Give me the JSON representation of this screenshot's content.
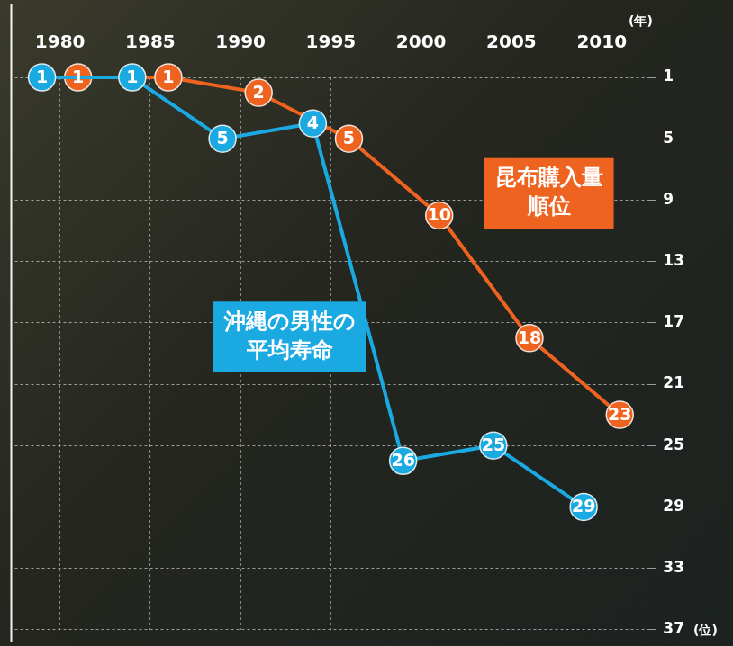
{
  "chart_data": {
    "type": "line",
    "xlabel": "(年)",
    "ylabel": "(位)",
    "categories": [
      "1980",
      "1985",
      "1990",
      "1995",
      "2000",
      "2005",
      "2010"
    ],
    "series": [
      {
        "name": "沖縄の男性の平均寿命",
        "color": "#1aa9e0",
        "marker": "circle",
        "values": [
          1,
          1,
          5,
          4,
          26,
          25,
          29
        ]
      },
      {
        "name": "昆布購入量順位",
        "color": "#ef6320",
        "marker": "circle",
        "values": [
          1,
          1,
          2,
          5,
          10,
          18,
          23
        ]
      }
    ],
    "ylim": [
      37,
      1
    ],
    "yticks": [
      1,
      5,
      9,
      13,
      17,
      21,
      25,
      29,
      33,
      37
    ],
    "grid": true,
    "data_labels": true
  }
}
